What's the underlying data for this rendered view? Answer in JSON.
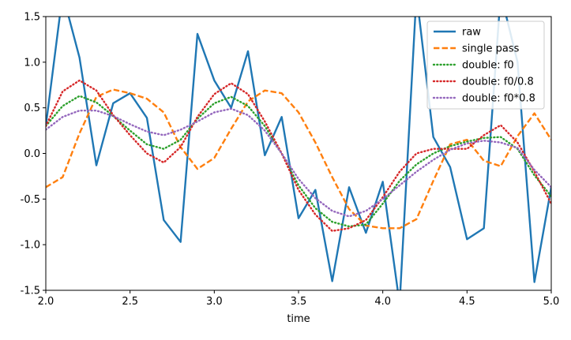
{
  "chart_data": {
    "type": "line",
    "title": "",
    "xlabel": "time",
    "ylabel": "",
    "xlim": [
      2.0,
      5.0
    ],
    "ylim": [
      -1.5,
      1.5
    ],
    "grid": false,
    "legend_placement": "top-right",
    "x_ticks": [
      "2.0",
      "2.5",
      "3.0",
      "3.5",
      "4.0",
      "4.5",
      "5.0"
    ],
    "y_ticks": [
      "-1.5",
      "-1.0",
      "-0.5",
      "0.0",
      "0.5",
      "1.0",
      "1.5"
    ],
    "x": [
      2.0,
      2.1,
      2.2,
      2.3,
      2.4,
      2.5,
      2.6,
      2.7,
      2.8,
      2.9,
      3.0,
      3.1,
      3.2,
      3.3,
      3.4,
      3.5,
      3.6,
      3.7,
      3.8,
      3.9,
      4.0,
      4.1,
      4.2,
      4.3,
      4.4,
      4.5,
      4.6,
      4.7,
      4.8,
      4.9,
      5.0
    ],
    "series": [
      {
        "name": "raw",
        "color": "#1f77b4",
        "style": "solid",
        "values": [
          0.3,
          1.75,
          1.05,
          -0.13,
          0.55,
          0.66,
          0.39,
          -0.73,
          -0.97,
          1.31,
          0.8,
          0.5,
          1.12,
          -0.02,
          0.4,
          -0.71,
          -0.4,
          -1.4,
          -0.37,
          -0.87,
          -0.31,
          -1.65,
          1.75,
          0.18,
          -0.15,
          -0.94,
          -0.82,
          1.75,
          1.0,
          -1.41,
          -0.37
        ]
      },
      {
        "name": "single pass",
        "color": "#ff7f0e",
        "style": "dashed",
        "values": [
          -0.37,
          -0.26,
          0.22,
          0.62,
          0.7,
          0.66,
          0.6,
          0.45,
          0.07,
          -0.17,
          -0.05,
          0.27,
          0.57,
          0.69,
          0.66,
          0.45,
          0.12,
          -0.26,
          -0.61,
          -0.79,
          -0.82,
          -0.82,
          -0.72,
          -0.3,
          0.1,
          0.15,
          -0.08,
          -0.14,
          0.19,
          0.44,
          0.15
        ]
      },
      {
        "name": "double: f0",
        "color": "#2ca02c",
        "style": "dotted",
        "values": [
          0.3,
          0.52,
          0.63,
          0.56,
          0.41,
          0.25,
          0.1,
          0.05,
          0.15,
          0.38,
          0.55,
          0.62,
          0.52,
          0.3,
          0.0,
          -0.35,
          -0.6,
          -0.75,
          -0.8,
          -0.78,
          -0.55,
          -0.3,
          -0.12,
          0.0,
          0.08,
          0.13,
          0.17,
          0.18,
          0.05,
          -0.24,
          -0.47
        ]
      },
      {
        "name": "double: f0/0.8",
        "color": "#d62728",
        "style": "dotted",
        "values": [
          0.3,
          0.68,
          0.8,
          0.69,
          0.42,
          0.2,
          0.0,
          -0.1,
          0.07,
          0.4,
          0.65,
          0.77,
          0.65,
          0.35,
          0.0,
          -0.4,
          -0.67,
          -0.85,
          -0.82,
          -0.73,
          -0.48,
          -0.2,
          0.0,
          0.05,
          0.05,
          0.05,
          0.2,
          0.31,
          0.12,
          -0.2,
          -0.55
        ]
      },
      {
        "name": "double: f0*0.8",
        "color": "#9467bd",
        "style": "dotted",
        "values": [
          0.26,
          0.4,
          0.47,
          0.47,
          0.41,
          0.32,
          0.24,
          0.2,
          0.26,
          0.35,
          0.45,
          0.49,
          0.42,
          0.25,
          0.0,
          -0.28,
          -0.49,
          -0.63,
          -0.69,
          -0.63,
          -0.5,
          -0.35,
          -0.2,
          -0.07,
          0.04,
          0.11,
          0.14,
          0.12,
          0.06,
          -0.18,
          -0.37
        ]
      }
    ]
  }
}
